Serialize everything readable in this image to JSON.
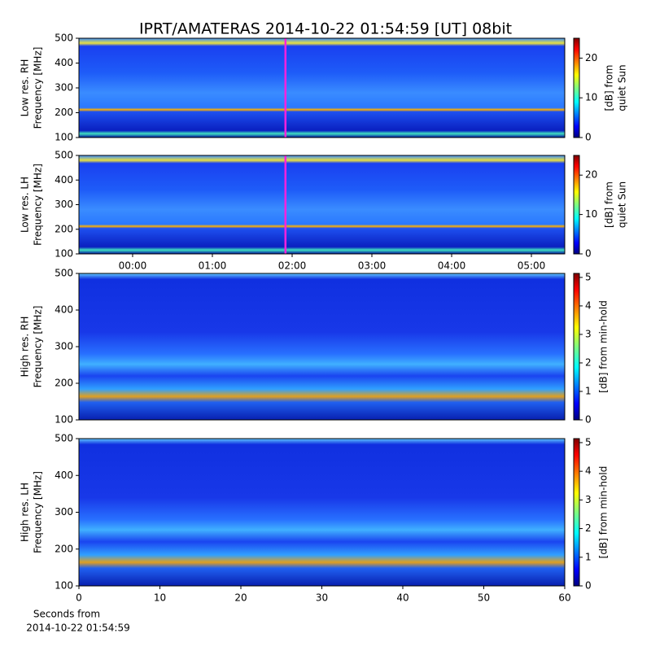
{
  "title": "IPRT/AMATERAS 2014-10-22 01:54:59 [UT]   08bit",
  "x_label": [
    "Seconds from",
    "2014-10-22 01:54:59"
  ],
  "chart_data": [
    {
      "type": "heatmap",
      "y_label": [
        "Low res. RH",
        "Frequency [MHz]"
      ],
      "ylim": [
        100,
        500
      ],
      "yticks": [
        100,
        200,
        300,
        400,
        500
      ],
      "xlim": [
        -0.673,
        5.418
      ],
      "marker_x": 1.9164,
      "marker_color": "#ff22dd",
      "colorbar_label": [
        "[dB] from",
        "quiet Sun"
      ],
      "clim": [
        0,
        25
      ],
      "cticks": [
        0,
        10,
        20
      ]
    },
    {
      "type": "heatmap",
      "y_label": [
        "Low res. LH",
        "Frequency [MHz]"
      ],
      "ylim": [
        100,
        500
      ],
      "yticks": [
        100,
        200,
        300,
        400,
        500
      ],
      "xlim": [
        -0.673,
        5.418
      ],
      "xticks": [
        {
          "value": 0,
          "label": "00:00"
        },
        {
          "value": 1,
          "label": "01:00"
        },
        {
          "value": 2,
          "label": "02:00"
        },
        {
          "value": 3,
          "label": "03:00"
        },
        {
          "value": 4,
          "label": "04:00"
        },
        {
          "value": 5,
          "label": "05:00"
        }
      ],
      "marker_x": 1.9164,
      "marker_color": "#ff22dd",
      "colorbar_label": [
        "[dB] from",
        "quiet Sun"
      ],
      "clim": [
        0,
        25
      ],
      "cticks": [
        0,
        10,
        20
      ]
    },
    {
      "type": "heatmap",
      "y_label": [
        "High res. RH",
        "Frequency [MHz]"
      ],
      "ylim": [
        100,
        500
      ],
      "yticks": [
        100,
        200,
        300,
        400,
        500
      ],
      "xlim": [
        0,
        60
      ],
      "colorbar_label": [
        "[dB] from min-hold"
      ],
      "clim": [
        0,
        5.14
      ],
      "cticks": [
        0,
        1,
        2,
        3,
        4,
        5
      ]
    },
    {
      "type": "heatmap",
      "y_label": [
        "High res. LH",
        "Frequency [MHz]"
      ],
      "ylim": [
        100,
        500
      ],
      "yticks": [
        100,
        200,
        300,
        400,
        500
      ],
      "xlim": [
        0,
        60
      ],
      "xticks": [
        0,
        10,
        20,
        30,
        40,
        50,
        60
      ],
      "colorbar_label": [
        "[dB] from min-hold"
      ],
      "clim": [
        0,
        5.14
      ],
      "cticks": [
        0,
        1,
        2,
        3,
        4,
        5
      ]
    }
  ]
}
